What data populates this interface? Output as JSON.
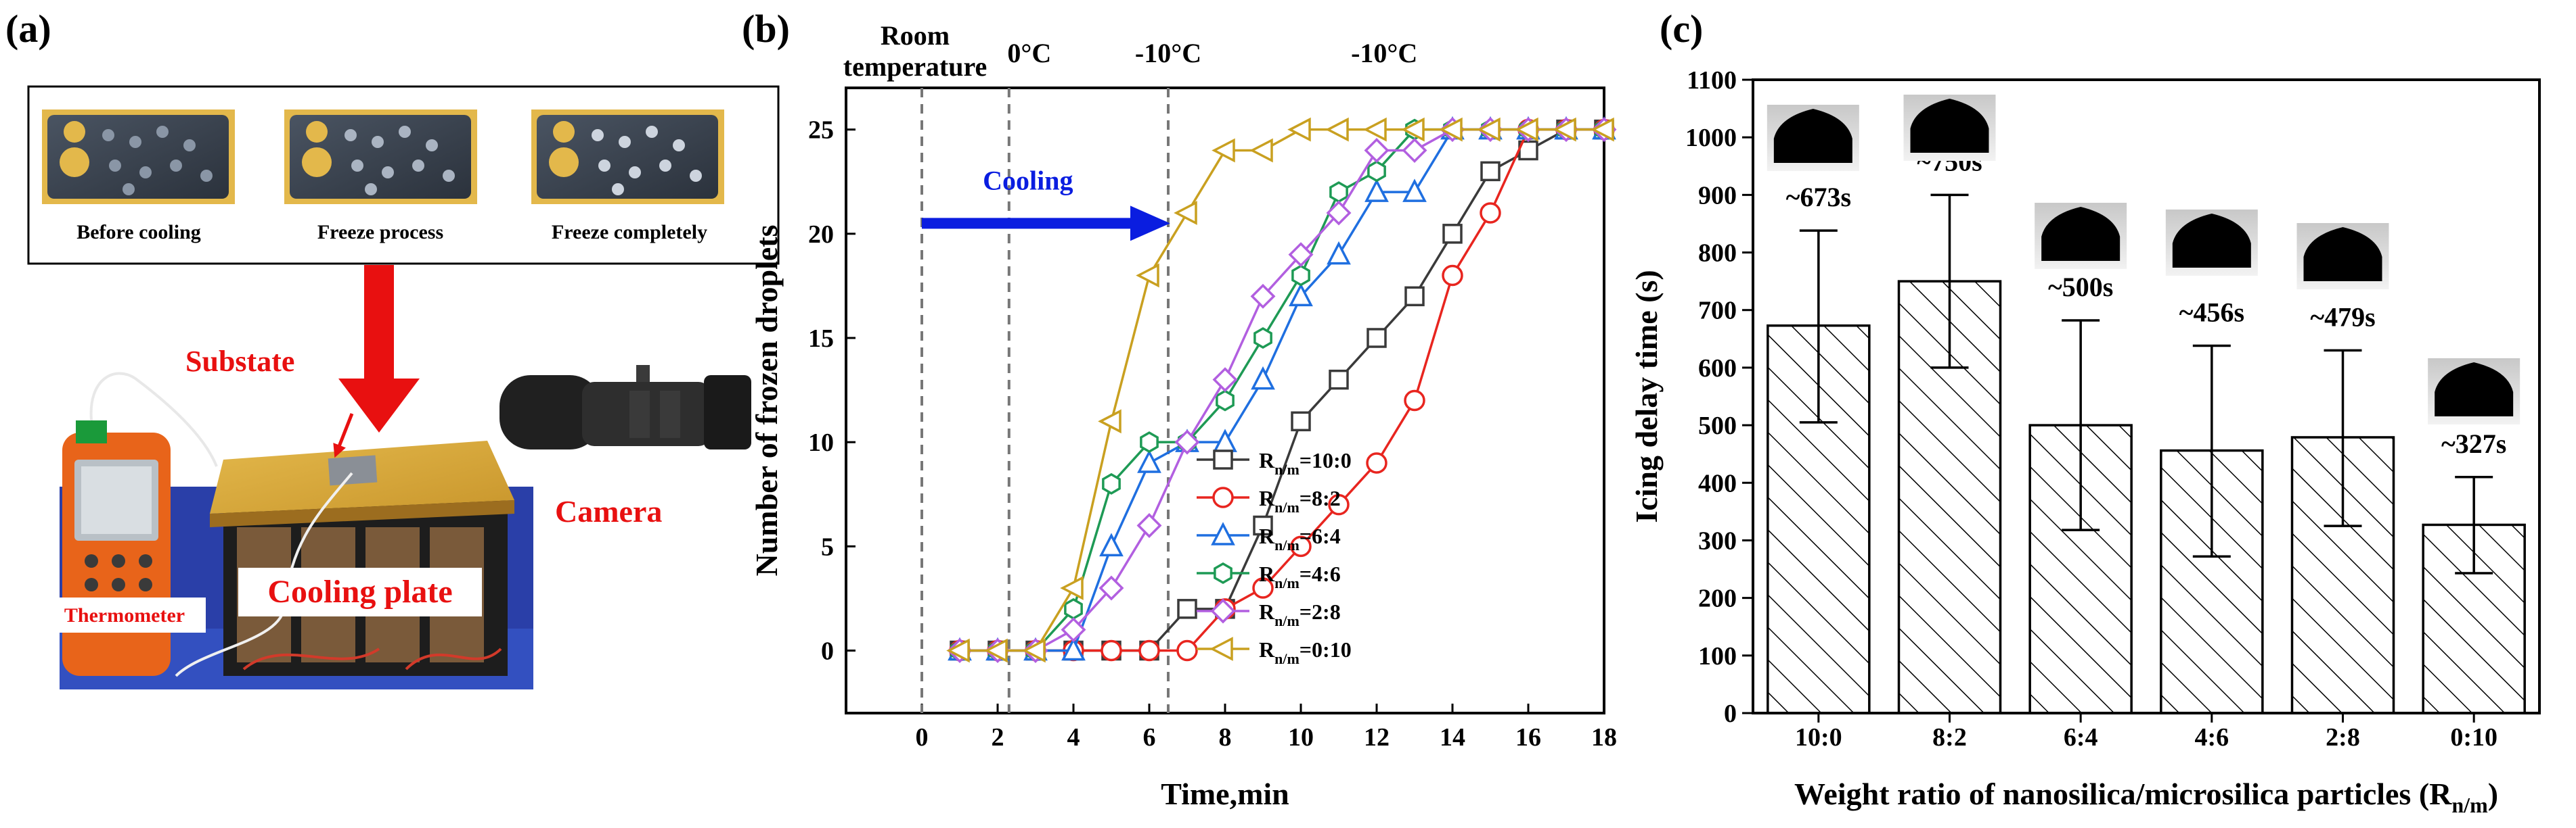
{
  "panel_a": {
    "label": "(a)",
    "captions": [
      "Before cooling",
      "Freeze process",
      "Freeze completely"
    ],
    "labels": {
      "substrate": "Substate",
      "camera": "Camera",
      "cooling_plate": "Cooling plate",
      "thermometer": "Thermometer"
    }
  },
  "panel_b": {
    "label": "(b)",
    "phases": {
      "room": "Room temperature",
      "zero": "0°C",
      "minus10a": "-10°C",
      "minus10b": "-10°C"
    },
    "cooling_label": "Cooling",
    "legend_prefix": "R",
    "legend_sub": "n/m"
  },
  "panel_c": {
    "label": "(c)",
    "annotations": [
      "~673s",
      "~750s",
      "~500s",
      "~456s",
      "~479s",
      "~327s"
    ]
  },
  "chart_data": [
    {
      "type": "line",
      "title": "",
      "xlabel": "Time,min",
      "ylabel": "Number of frozen droplets",
      "xlim": [
        -2,
        18
      ],
      "ylim": [
        -3,
        27
      ],
      "xticks": [
        0,
        2,
        4,
        6,
        8,
        10,
        12,
        14,
        16,
        18
      ],
      "yticks": [
        0,
        5,
        10,
        15,
        20,
        25
      ],
      "phase_lines_x": [
        0,
        2.3,
        6.5
      ],
      "series": [
        {
          "name": "=10:0",
          "marker": "square",
          "color": "#3a3a3a",
          "x": [
            1,
            2,
            3,
            4,
            5,
            6,
            7,
            8,
            9,
            10,
            11,
            12,
            13,
            14,
            15,
            16,
            17,
            18
          ],
          "y": [
            0,
            0,
            0,
            0,
            0,
            0,
            2,
            2,
            6,
            11,
            13,
            15,
            17,
            20,
            23,
            24,
            25,
            25
          ]
        },
        {
          "name": "=8:2",
          "marker": "circle",
          "color": "#e8251f",
          "x": [
            1,
            2,
            3,
            4,
            5,
            6,
            7,
            8,
            9,
            10,
            11,
            12,
            13,
            14,
            15,
            16,
            17,
            18
          ],
          "y": [
            0,
            0,
            0,
            0,
            0,
            0,
            0,
            2,
            3,
            5,
            7,
            9,
            12,
            18,
            21,
            25,
            25,
            25
          ]
        },
        {
          "name": "=6:4",
          "marker": "triangle",
          "color": "#1f6fe0",
          "x": [
            1,
            2,
            3,
            4,
            5,
            6,
            7,
            8,
            9,
            10,
            11,
            12,
            13,
            14,
            15,
            16,
            17,
            18
          ],
          "y": [
            0,
            0,
            0,
            0,
            5,
            9,
            10,
            10,
            13,
            17,
            19,
            22,
            22,
            25,
            25,
            25,
            25,
            25
          ]
        },
        {
          "name": "=4:6",
          "marker": "hexagon",
          "color": "#1e9a55",
          "x": [
            1,
            2,
            3,
            4,
            5,
            6,
            7,
            8,
            9,
            10,
            11,
            12,
            13,
            14,
            15,
            16,
            17,
            18
          ],
          "y": [
            0,
            0,
            0,
            2,
            8,
            10,
            10,
            12,
            15,
            18,
            22,
            23,
            25,
            25,
            25,
            25,
            25,
            25
          ]
        },
        {
          "name": "=2:8",
          "marker": "diamond",
          "color": "#b25fe0",
          "x": [
            1,
            2,
            3,
            4,
            5,
            6,
            7,
            8,
            9,
            10,
            11,
            12,
            13,
            14,
            15,
            16,
            17,
            18
          ],
          "y": [
            0,
            0,
            0,
            1,
            3,
            6,
            10,
            13,
            17,
            19,
            21,
            24,
            24,
            25,
            25,
            25,
            25,
            25
          ]
        },
        {
          "name": "=0:10",
          "marker": "tri-left",
          "color": "#c9a020",
          "x": [
            1,
            2,
            3,
            4,
            5,
            6,
            7,
            8,
            9,
            10,
            11,
            12,
            13,
            14,
            15,
            16,
            17,
            18
          ],
          "y": [
            0,
            0,
            0,
            3,
            11,
            18,
            21,
            24,
            24,
            25,
            25,
            25,
            25,
            25,
            25,
            25,
            25,
            25
          ]
        }
      ]
    },
    {
      "type": "bar",
      "title": "",
      "xlabel": "Weight ratio of nanosilica/microsilica particles (R",
      "xlabel_sub": "n/m",
      "xlabel_end": ")",
      "ylabel": "Icing delay time (s)",
      "ylim": [
        0,
        1100
      ],
      "yticks": [
        0,
        100,
        200,
        300,
        400,
        500,
        600,
        700,
        800,
        900,
        1000,
        1100
      ],
      "categories": [
        "10:0",
        "8:2",
        "6:4",
        "4:6",
        "2:8",
        "0:10"
      ],
      "values": [
        673,
        750,
        500,
        456,
        479,
        327
      ],
      "error_low": [
        505,
        600,
        318,
        272,
        325,
        243
      ],
      "error_high": [
        838,
        900,
        682,
        638,
        630,
        410
      ]
    }
  ]
}
